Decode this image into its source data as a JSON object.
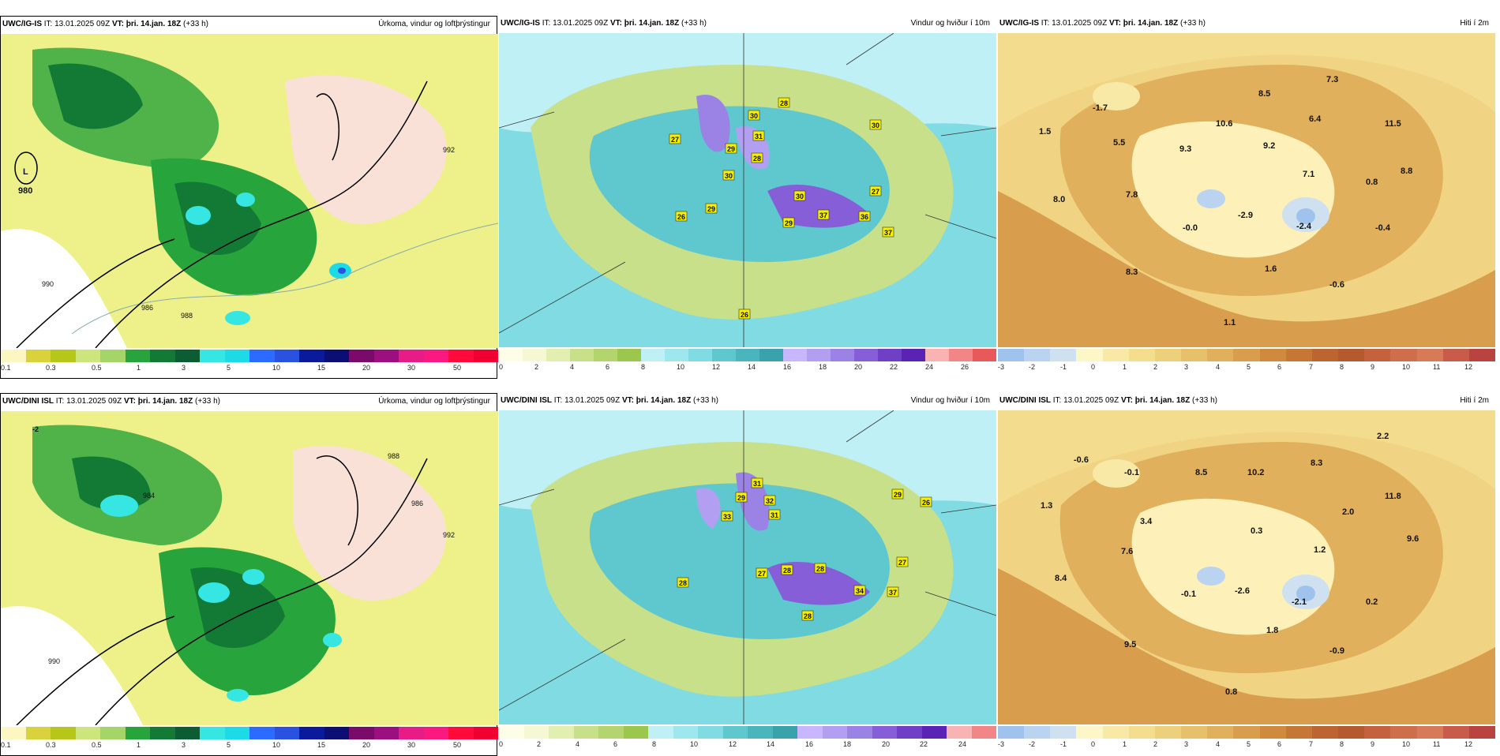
{
  "panels": [
    {
      "id": "p1",
      "model": "UWC/IG-IS",
      "it": " IT: 13.01.2025 09Z ",
      "vt": "VT: þri. 14.jan. 18Z",
      "lead": " (+33 h)",
      "title": "Úrkoma, vindur og loftþrýstingur",
      "map_type": "precipitation",
      "labels": [
        {
          "text": "L"
        },
        {
          "text": "980"
        },
        {
          "text": "992"
        },
        {
          "text": "986"
        },
        {
          "text": "988"
        },
        {
          "text": "990"
        }
      ],
      "colorbar": [
        "#fbf6c2",
        "#d9d23c",
        "#b7c71a",
        "#cde57d",
        "#a5d468",
        "#27a43b",
        "#127a35",
        "#0c5d34",
        "#35e6e2",
        "#1ddbe6",
        "#2c6bff",
        "#2a52e1",
        "#0a1a9a",
        "#0b0e73",
        "#7a0b6a",
        "#9c0f7f",
        "#e81c86",
        "#f9197f",
        "#ff0a3b",
        "#f00030"
      ],
      "ticks": [
        "0.1",
        "0.3",
        "0.5",
        "1",
        "3",
        "5",
        "10",
        "15",
        "20",
        "30",
        "50"
      ]
    },
    {
      "id": "p2",
      "model": "UWC/IG-IS",
      "it": " IT: 13.01.2025 09Z ",
      "vt": "VT: þri. 14.jan. 18Z",
      "lead": " (+33 h)",
      "title": "Vindur og hviður í 10m",
      "map_type": "wind",
      "labels": [
        {
          "text": "27"
        },
        {
          "text": "28"
        },
        {
          "text": "30"
        },
        {
          "text": "29"
        },
        {
          "text": "31"
        },
        {
          "text": "30"
        },
        {
          "text": "28"
        },
        {
          "text": "30"
        },
        {
          "text": "26"
        },
        {
          "text": "29"
        },
        {
          "text": "30"
        },
        {
          "text": "29"
        },
        {
          "text": "37"
        },
        {
          "text": "36"
        },
        {
          "text": "27"
        },
        {
          "text": "37"
        },
        {
          "text": "26"
        }
      ],
      "colorbar": [
        "#fefee8",
        "#f5f8d2",
        "#e3efb0",
        "#c8e089",
        "#b4d46f",
        "#9bc74f",
        "#bff0f5",
        "#9fe7ee",
        "#80dbe3",
        "#5fc8cf",
        "#49b5bd",
        "#3aa2ab",
        "#c8b7ff",
        "#b39ff2",
        "#9b83e6",
        "#865ed8",
        "#6f3fc6",
        "#5a23b3",
        "#f9b3b3",
        "#f28585",
        "#e85a5a"
      ],
      "ticks": [
        "0",
        "2",
        "4",
        "6",
        "8",
        "10",
        "12",
        "14",
        "16",
        "18",
        "20",
        "22",
        "24",
        "26"
      ]
    },
    {
      "id": "p3",
      "model": "UWC/IG-IS",
      "it": " IT: 13.01.2025 09Z ",
      "vt": "VT: þri. 14.jan. 18Z",
      "lead": " (+33 h)",
      "title": "Hiti í 2m",
      "map_type": "temperature",
      "labels": [
        {
          "text": "-1.7"
        },
        {
          "text": "1.5"
        },
        {
          "text": "5.5"
        },
        {
          "text": "9.3"
        },
        {
          "text": "10.6"
        },
        {
          "text": "8.5"
        },
        {
          "text": "7.3"
        },
        {
          "text": "6.4"
        },
        {
          "text": "11.5"
        },
        {
          "text": "9.2"
        },
        {
          "text": "7.1"
        },
        {
          "text": "8.8"
        },
        {
          "text": "7.8"
        },
        {
          "text": "8.0"
        },
        {
          "text": "0.8"
        },
        {
          "text": "-0.0"
        },
        {
          "text": "-2.9"
        },
        {
          "text": "-2.4"
        },
        {
          "text": "-0.4"
        },
        {
          "text": "8.3"
        },
        {
          "text": "1.6"
        },
        {
          "text": "-0.6"
        },
        {
          "text": "1.1"
        }
      ],
      "colorbar": [
        "#9fc3ec",
        "#b9d3f0",
        "#cfe1f0",
        "#fdf6c7",
        "#f8eaa6",
        "#f4dd8d",
        "#ecd07c",
        "#e6c06a",
        "#e0b05c",
        "#d99e4d",
        "#cf8a3e",
        "#c67635",
        "#bc6530",
        "#b5592e",
        "#c4623d",
        "#cf6e4b",
        "#d67a58",
        "#c85b4a",
        "#b9433e"
      ],
      "ticks": [
        "-3",
        "-2",
        "-1",
        "0",
        "1",
        "2",
        "3",
        "4",
        "5",
        "6",
        "7",
        "8",
        "9",
        "10",
        "11",
        "12"
      ]
    },
    {
      "id": "p4",
      "model": "UWC/DINI ISL",
      "it": " IT: 13.01.2025 09Z ",
      "vt": "VT: þri. 14.jan. 18Z",
      "lead": " (+33 h)",
      "title": "Úrkoma, vindur og loftþrýstingur",
      "map_type": "precipitation",
      "labels": [
        {
          "text": "-2"
        },
        {
          "text": "988"
        },
        {
          "text": "986"
        },
        {
          "text": "984"
        },
        {
          "text": "990"
        },
        {
          "text": "992"
        }
      ],
      "colorbar": [
        "#fbf6c2",
        "#d9d23c",
        "#b7c71a",
        "#cde57d",
        "#a5d468",
        "#27a43b",
        "#127a35",
        "#0c5d34",
        "#35e6e2",
        "#1ddbe6",
        "#2c6bff",
        "#2a52e1",
        "#0a1a9a",
        "#0b0e73",
        "#7a0b6a",
        "#9c0f7f",
        "#e81c86",
        "#f9197f",
        "#ff0a3b",
        "#f00030"
      ],
      "ticks": [
        "0.1",
        "0.3",
        "0.5",
        "1",
        "3",
        "5",
        "10",
        "15",
        "20",
        "30",
        "50"
      ]
    },
    {
      "id": "p5",
      "model": "UWC/DINI ISL",
      "it": " IT: 13.01.2025 09Z ",
      "vt": "VT: þri. 14.jan. 18Z",
      "lead": " (+33 h)",
      "title": "Vindur og hviður í 10m",
      "map_type": "wind",
      "labels": [
        {
          "text": "31"
        },
        {
          "text": "29"
        },
        {
          "text": "32"
        },
        {
          "text": "33"
        },
        {
          "text": "31"
        },
        {
          "text": "29"
        },
        {
          "text": "26"
        },
        {
          "text": "28"
        },
        {
          "text": "27"
        },
        {
          "text": "28"
        },
        {
          "text": "28"
        },
        {
          "text": "34"
        },
        {
          "text": "37"
        },
        {
          "text": "27"
        },
        {
          "text": "28"
        }
      ],
      "colorbar": [
        "#fefee8",
        "#f5f8d2",
        "#e3efb0",
        "#c8e089",
        "#b4d46f",
        "#9bc74f",
        "#bff0f5",
        "#9fe7ee",
        "#80dbe3",
        "#5fc8cf",
        "#49b5bd",
        "#3aa2ab",
        "#c8b7ff",
        "#b39ff2",
        "#9b83e6",
        "#865ed8",
        "#6f3fc6",
        "#5a23b3",
        "#f9b3b3",
        "#f28585"
      ],
      "ticks": [
        "0",
        "2",
        "4",
        "6",
        "8",
        "10",
        "12",
        "14",
        "16",
        "18",
        "20",
        "22",
        "24"
      ]
    },
    {
      "id": "p6",
      "model": "UWC/DINI ISL",
      "it": " IT: 13.01.2025 09Z ",
      "vt": "VT: þri. 14.jan. 18Z",
      "lead": " (+33 h)",
      "title": "Hiti í 2m",
      "map_type": "temperature",
      "labels": [
        {
          "text": "-0.6"
        },
        {
          "text": "-0.1"
        },
        {
          "text": "8.5"
        },
        {
          "text": "10.2"
        },
        {
          "text": "8.3"
        },
        {
          "text": "2.2"
        },
        {
          "text": "1.3"
        },
        {
          "text": "3.4"
        },
        {
          "text": "0.3"
        },
        {
          "text": "2.0"
        },
        {
          "text": "11.8"
        },
        {
          "text": "7.6"
        },
        {
          "text": "1.2"
        },
        {
          "text": "9.6"
        },
        {
          "text": "8.4"
        },
        {
          "text": "-0.1"
        },
        {
          "text": "-2.6"
        },
        {
          "text": "-2.1"
        },
        {
          "text": "0.2"
        },
        {
          "text": "1.8"
        },
        {
          "text": "9.5"
        },
        {
          "text": "-0.9"
        },
        {
          "text": "0.8"
        }
      ],
      "colorbar": [
        "#9fc3ec",
        "#b9d3f0",
        "#cfe1f0",
        "#fdf6c7",
        "#f8eaa6",
        "#f4dd8d",
        "#ecd07c",
        "#e6c06a",
        "#e0b05c",
        "#d99e4d",
        "#cf8a3e",
        "#c67635",
        "#bc6530",
        "#b5592e",
        "#c4623d",
        "#cf6e4b",
        "#d67a58",
        "#c85b4a",
        "#b9433e"
      ],
      "ticks": [
        "-3",
        "-2",
        "-1",
        "0",
        "1",
        "2",
        "3",
        "4",
        "5",
        "6",
        "7",
        "8",
        "9",
        "10",
        "11",
        "12"
      ]
    }
  ]
}
